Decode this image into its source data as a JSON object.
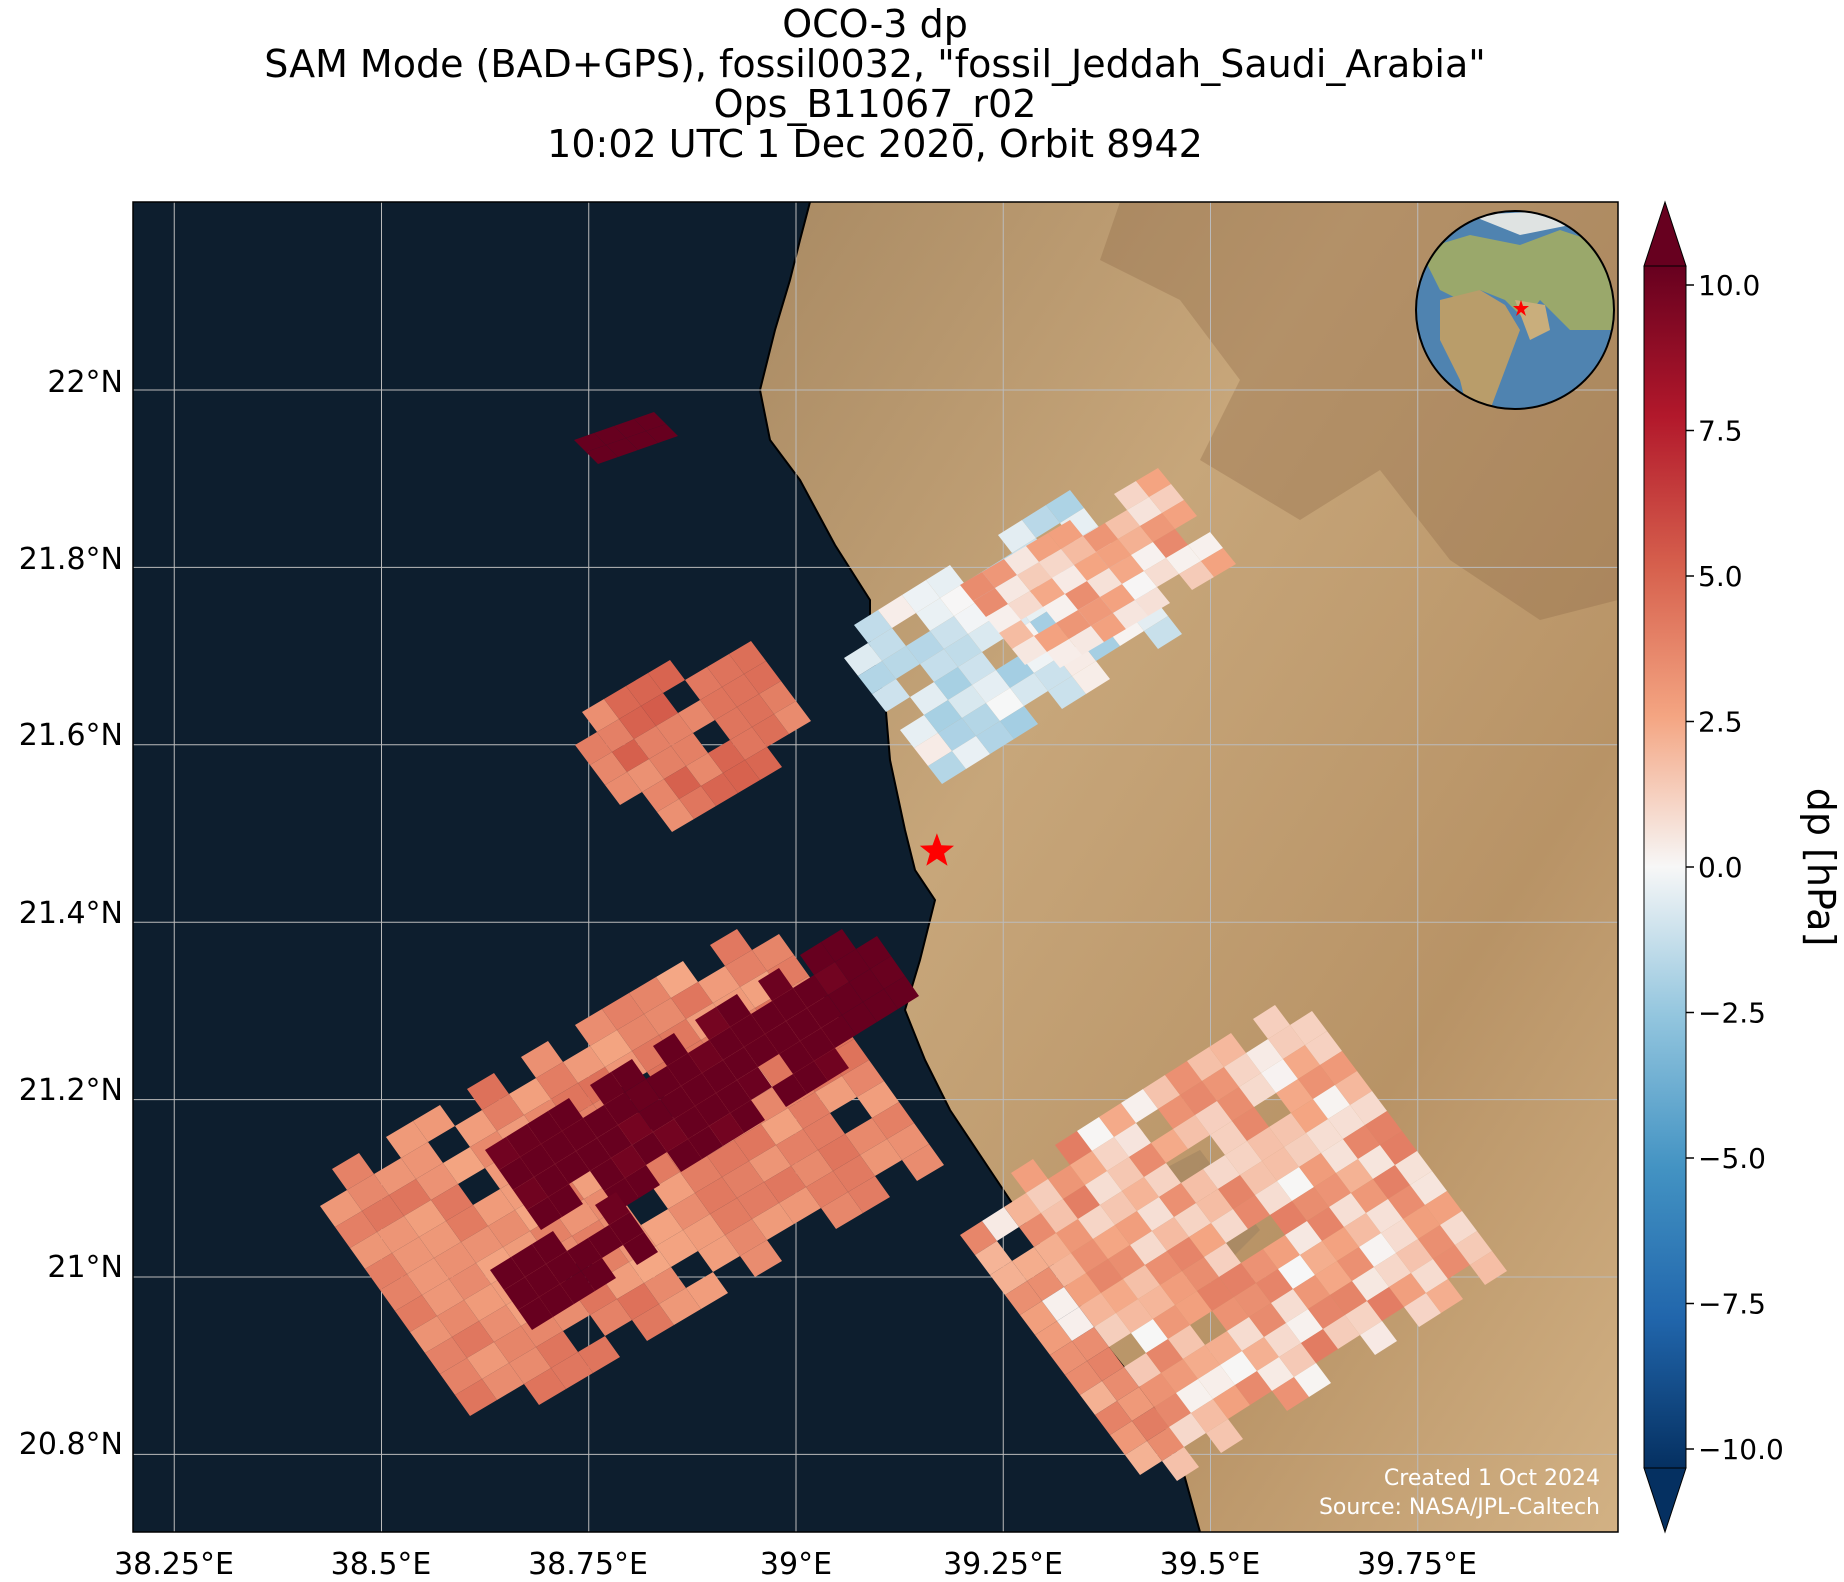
{
  "title_lines": [
    "OCO-3 dp",
    "SAM Mode (BAD+GPS), fossil0032, \"fossil_Jeddah_Saudi_Arabia\"",
    "Ops_B11067_r02",
    "10:02 UTC 1 Dec 2020, Orbit 8942"
  ],
  "map": {
    "lon_ticks": [
      "38.25°E",
      "38.5°E",
      "38.75°E",
      "39°E",
      "39.25°E",
      "39.5°E",
      "39.75°E"
    ],
    "lat_ticks": [
      "22°N",
      "21.8°N",
      "21.6°N",
      "21.4°N",
      "21.2°N",
      "21°N",
      "20.8°N"
    ],
    "target_marker_icon": "red-star-icon",
    "inset_icon": "globe-locator-icon",
    "credit_lines": [
      "Created 1 Oct 2024",
      "Source: NASA/JPL-Caltech"
    ]
  },
  "colorbar": {
    "label": "dp [hPa]",
    "ticks": [
      "10.0",
      "7.5",
      "5.0",
      "2.5",
      "0.0",
      "−2.5",
      "−5.0",
      "−7.5",
      "−10.0"
    ],
    "colormap": "RdBu_r",
    "range": [
      -10,
      10
    ],
    "extend": "both"
  },
  "colors": {
    "ocean": "#0d1e2e",
    "land": "#c3a275",
    "max_red": "#67001f",
    "max_blue": "#053061",
    "grid": "#bbbbbb"
  }
}
